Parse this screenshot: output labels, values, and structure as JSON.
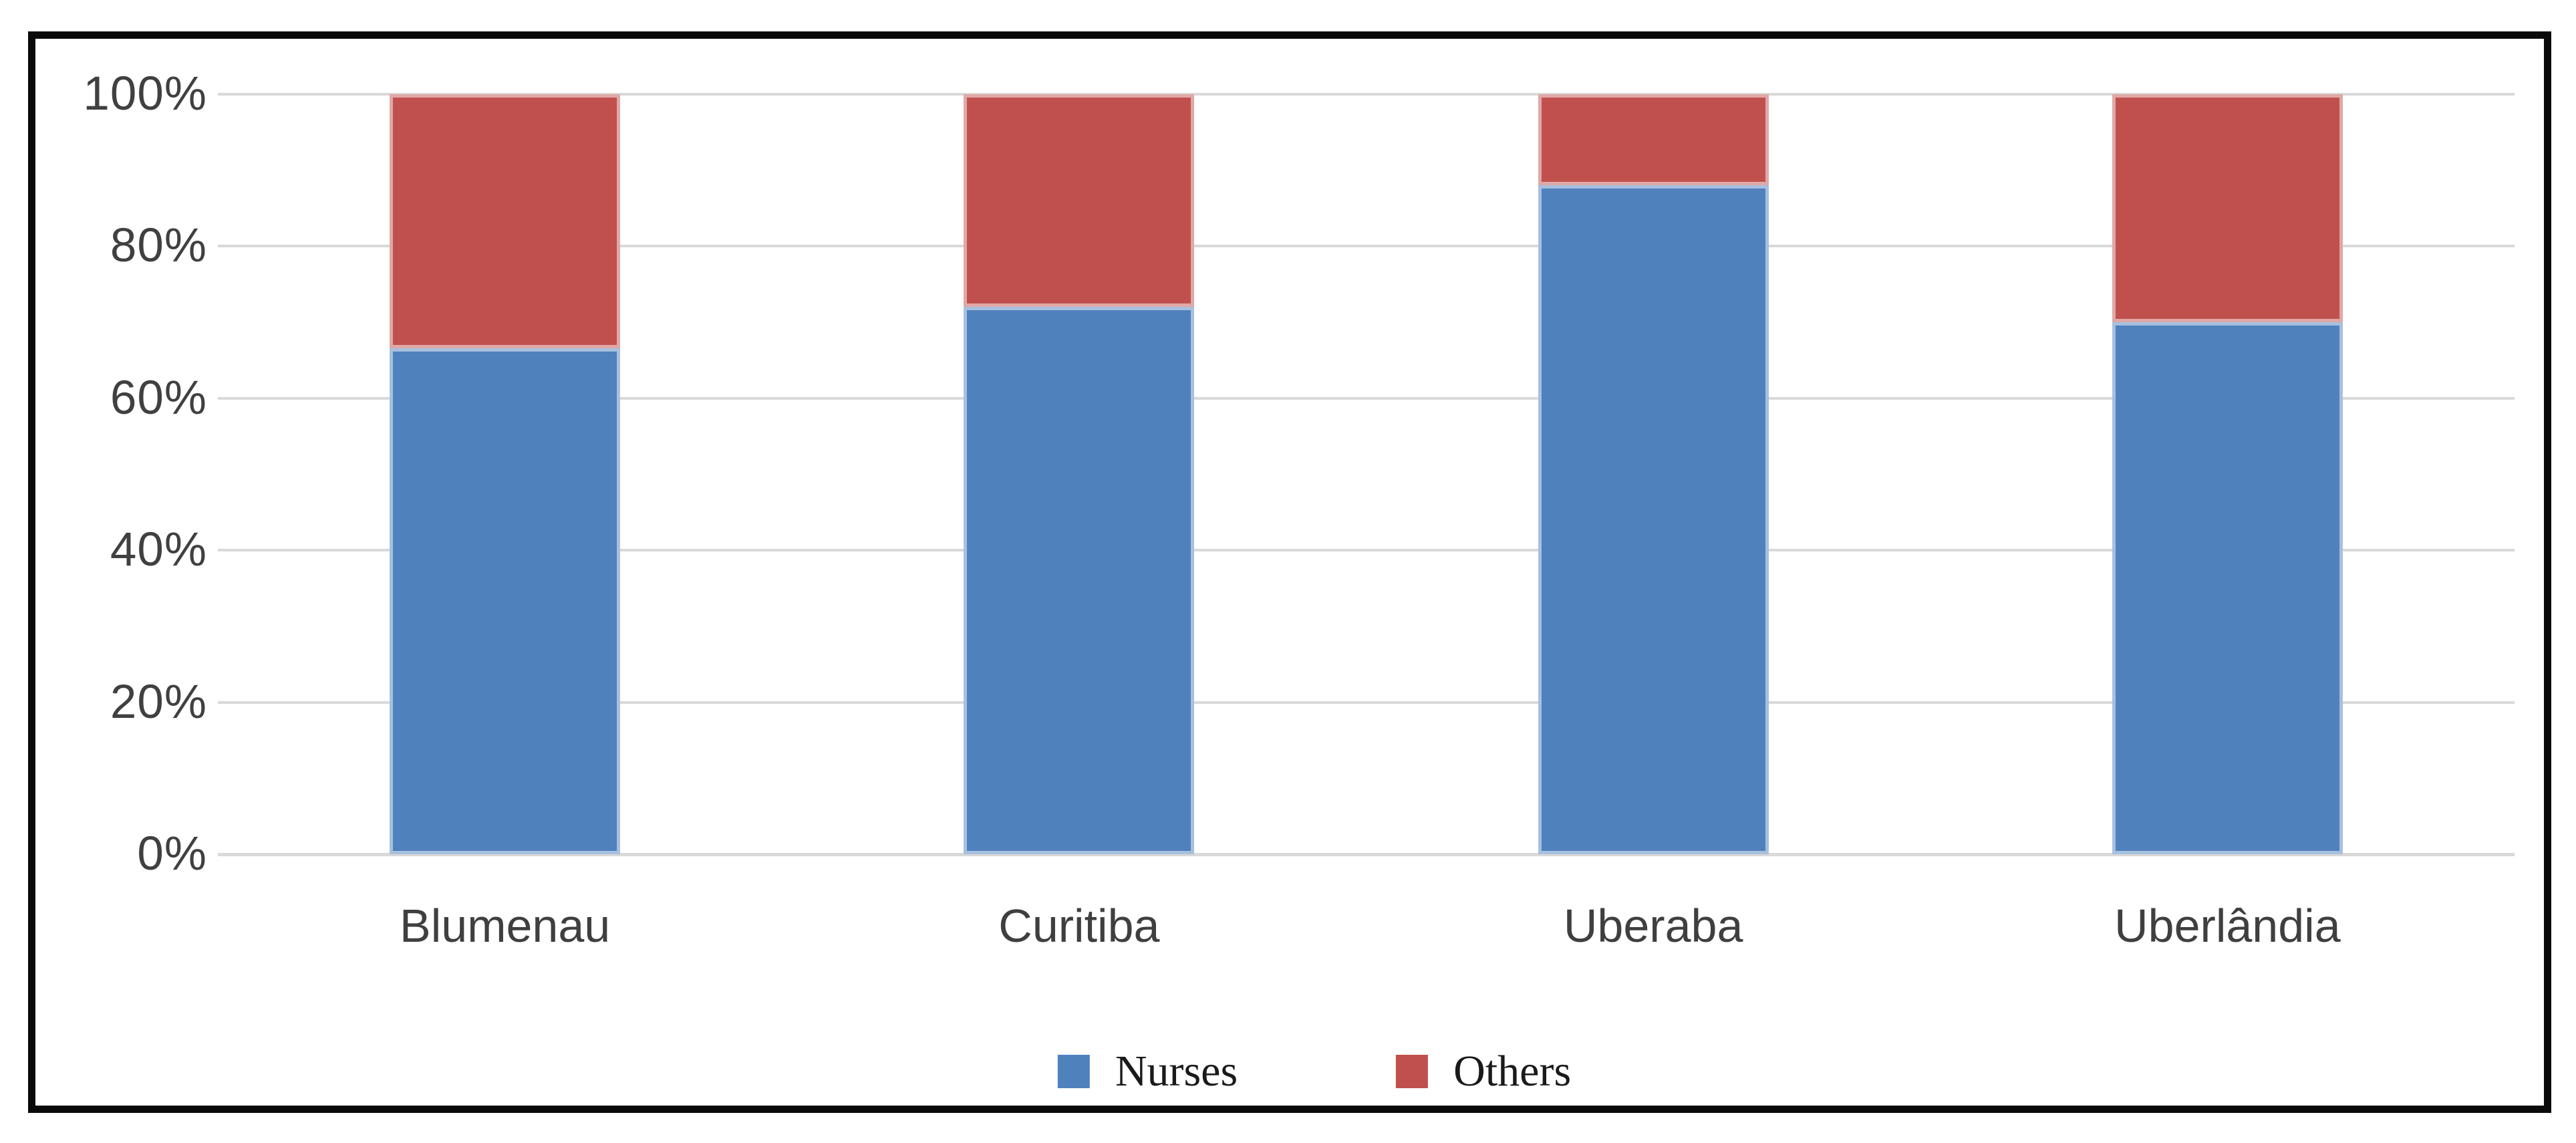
{
  "chart_data": {
    "type": "bar",
    "variant": "stacked-100-percent",
    "title": "",
    "xlabel": "",
    "ylabel": "",
    "categories": [
      "Blumenau",
      "Curitiba",
      "Uberaba",
      "Uberlândia"
    ],
    "series": [
      {
        "name": "Nurses",
        "color": "#4F81BD",
        "values": [
          66.6,
          72,
          88,
          70
        ]
      },
      {
        "name": "Others",
        "color": "#C0504D",
        "values": [
          33.4,
          28,
          12,
          30
        ]
      }
    ],
    "ylim": [
      0,
      100
    ],
    "yticks": [
      {
        "value": 100,
        "label": "100%"
      },
      {
        "value": 80,
        "label": "80%"
      },
      {
        "value": 60,
        "label": "60%"
      },
      {
        "value": 40,
        "label": "40%"
      },
      {
        "value": 20,
        "label": "20%"
      },
      {
        "value": 0,
        "label": "0%"
      }
    ],
    "grid": true,
    "legend_position": "bottom",
    "colors": {
      "gridline": "#D9D9D9",
      "axis_line": "#D9D9D9",
      "tick_label": "#404040",
      "category_label": "#3F3F3F",
      "frame_border": "#0A0A0A",
      "background": "#FFFFFF"
    }
  }
}
